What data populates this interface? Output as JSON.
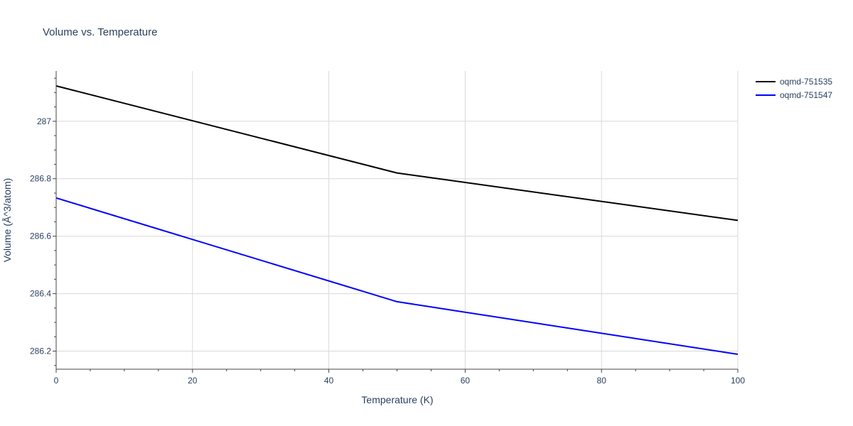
{
  "chart_data": {
    "type": "line",
    "title": "Volume vs. Temperature",
    "xlabel": "Temperature (K)",
    "ylabel": "Volume (Å^3/atom)",
    "xlim": [
      0,
      100
    ],
    "ylim": [
      286.137,
      287.175
    ],
    "xticks": [
      0,
      20,
      40,
      60,
      80,
      100
    ],
    "xtick_labels": [
      "0",
      "20",
      "40",
      "60",
      "80",
      "100"
    ],
    "yticks": [
      286.2,
      286.4,
      286.6,
      286.8,
      287
    ],
    "ytick_labels": [
      "286.2",
      "286.4",
      "286.6",
      "286.8",
      "287"
    ],
    "grid": true,
    "legend_position": "top-right",
    "series": [
      {
        "name": "oqmd-751535",
        "color": "#000000",
        "x": [
          0,
          50,
          100
        ],
        "y": [
          287.123,
          286.82,
          286.655
        ]
      },
      {
        "name": "oqmd-751547",
        "color": "#0000ff",
        "x": [
          0,
          50,
          100
        ],
        "y": [
          286.733,
          286.372,
          286.189
        ]
      }
    ]
  }
}
